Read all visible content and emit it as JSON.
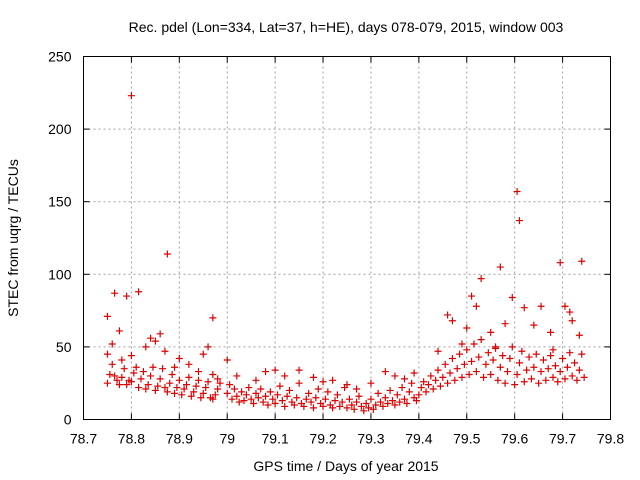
{
  "chart_data": {
    "type": "scatter",
    "title": "Rec. pdel (Lon=334, Lat=37, h=HE), days 078-079, 2015, window 003",
    "xlabel": "GPS time / Days of year 2015",
    "ylabel": "STEC from uqrg / TECUs",
    "xlim": [
      78.7,
      79.8
    ],
    "ylim": [
      0,
      250
    ],
    "xticks": [
      "78.7",
      "78.8",
      "78.9",
      "79",
      "79.1",
      "79.2",
      "79.3",
      "79.4",
      "79.5",
      "79.6",
      "79.7",
      "79.8"
    ],
    "yticks": [
      "0",
      "50",
      "100",
      "150",
      "200",
      "250"
    ],
    "grid": true,
    "marker": "+",
    "color": "#dd0000",
    "points": [
      [
        78.75,
        25
      ],
      [
        78.755,
        31
      ],
      [
        78.76,
        38
      ],
      [
        78.765,
        30
      ],
      [
        78.77,
        27
      ],
      [
        78.775,
        24
      ],
      [
        78.78,
        29
      ],
      [
        78.785,
        35
      ],
      [
        78.79,
        24
      ],
      [
        78.795,
        27
      ],
      [
        78.8,
        26
      ],
      [
        78.805,
        32
      ],
      [
        78.81,
        36
      ],
      [
        78.815,
        22
      ],
      [
        78.82,
        28
      ],
      [
        78.825,
        33
      ],
      [
        78.83,
        21
      ],
      [
        78.835,
        24
      ],
      [
        78.84,
        30
      ],
      [
        78.845,
        36
      ],
      [
        78.85,
        20
      ],
      [
        78.855,
        23
      ],
      [
        78.86,
        28
      ],
      [
        78.865,
        35
      ],
      [
        78.87,
        22
      ],
      [
        78.875,
        19
      ],
      [
        78.88,
        25
      ],
      [
        78.885,
        31
      ],
      [
        78.89,
        18
      ],
      [
        78.895,
        22
      ],
      [
        78.9,
        27
      ],
      [
        78.905,
        17
      ],
      [
        78.91,
        21
      ],
      [
        78.915,
        24
      ],
      [
        78.92,
        29
      ],
      [
        78.925,
        16
      ],
      [
        78.93,
        19
      ],
      [
        78.935,
        23
      ],
      [
        78.94,
        27
      ],
      [
        78.945,
        15
      ],
      [
        78.95,
        18
      ],
      [
        78.955,
        22
      ],
      [
        78.96,
        26
      ],
      [
        78.965,
        15
      ],
      [
        78.97,
        14
      ],
      [
        78.975,
        17
      ],
      [
        78.98,
        21
      ],
      [
        78.985,
        25
      ],
      [
        78.75,
        45
      ],
      [
        78.76,
        52
      ],
      [
        78.78,
        41
      ],
      [
        78.8,
        44
      ],
      [
        78.83,
        50
      ],
      [
        78.85,
        54
      ],
      [
        78.87,
        47
      ],
      [
        78.9,
        42
      ],
      [
        78.92,
        38
      ],
      [
        78.95,
        45
      ],
      [
        78.97,
        31
      ],
      [
        78.98,
        28
      ],
      [
        78.75,
        71
      ],
      [
        78.765,
        87
      ],
      [
        78.775,
        61
      ],
      [
        78.79,
        85
      ],
      [
        78.8,
        223
      ],
      [
        78.815,
        88
      ],
      [
        78.84,
        56
      ],
      [
        78.86,
        59
      ],
      [
        78.875,
        114
      ],
      [
        78.96,
        50
      ],
      [
        78.97,
        70
      ],
      [
        78.89,
        36
      ],
      [
        78.94,
        33
      ],
      [
        79.0,
        18
      ],
      [
        79.005,
        24
      ],
      [
        79.01,
        14
      ],
      [
        79.015,
        21
      ],
      [
        79.02,
        16
      ],
      [
        79.025,
        12
      ],
      [
        79.03,
        19
      ],
      [
        79.035,
        13
      ],
      [
        79.04,
        17
      ],
      [
        79.045,
        22
      ],
      [
        79.05,
        14
      ],
      [
        79.055,
        11
      ],
      [
        79.06,
        18
      ],
      [
        79.065,
        15
      ],
      [
        79.07,
        21
      ],
      [
        79.075,
        12
      ],
      [
        79.08,
        16
      ],
      [
        79.085,
        10
      ],
      [
        79.09,
        19
      ],
      [
        79.095,
        14
      ],
      [
        79.1,
        11
      ],
      [
        79.105,
        17
      ],
      [
        79.11,
        23
      ],
      [
        79.115,
        13
      ],
      [
        79.12,
        9
      ],
      [
        79.125,
        16
      ],
      [
        79.13,
        20
      ],
      [
        79.135,
        12
      ],
      [
        79.14,
        10
      ],
      [
        79.145,
        15
      ],
      [
        79.15,
        25
      ],
      [
        79.155,
        11
      ],
      [
        79.16,
        9
      ],
      [
        79.165,
        14
      ],
      [
        79.17,
        18
      ],
      [
        79.175,
        12
      ],
      [
        79.18,
        8
      ],
      [
        79.185,
        15
      ],
      [
        79.19,
        21
      ],
      [
        79.195,
        11
      ],
      [
        79.2,
        9
      ],
      [
        79.205,
        14
      ],
      [
        79.21,
        19
      ],
      [
        79.215,
        10
      ],
      [
        79.22,
        8
      ],
      [
        79.225,
        13
      ],
      [
        79.23,
        17
      ],
      [
        79.235,
        9
      ],
      [
        79.24,
        12
      ],
      [
        79.245,
        22
      ],
      [
        79.25,
        8
      ],
      [
        79.255,
        14
      ],
      [
        79.26,
        10
      ],
      [
        79.265,
        7
      ],
      [
        79.27,
        12
      ],
      [
        79.275,
        16
      ],
      [
        79.28,
        9
      ],
      [
        79.285,
        6
      ],
      [
        79.29,
        11
      ],
      [
        79.295,
        8
      ],
      [
        79.3,
        14
      ],
      [
        79.305,
        7
      ],
      [
        79.31,
        10
      ],
      [
        79.315,
        18
      ],
      [
        79.32,
        12
      ],
      [
        79.325,
        9
      ],
      [
        79.33,
        15
      ],
      [
        79.335,
        11
      ],
      [
        79.34,
        20
      ],
      [
        79.345,
        13
      ],
      [
        79.35,
        10
      ],
      [
        79.355,
        17
      ],
      [
        79.36,
        12
      ],
      [
        79.365,
        22
      ],
      [
        79.37,
        14
      ],
      [
        79.375,
        11
      ],
      [
        79.38,
        19
      ],
      [
        79.385,
        25
      ],
      [
        79.39,
        15
      ],
      [
        79.395,
        13
      ],
      [
        79.0,
        41
      ],
      [
        79.02,
        30
      ],
      [
        79.06,
        27
      ],
      [
        79.08,
        33
      ],
      [
        79.1,
        34
      ],
      [
        79.12,
        30
      ],
      [
        79.15,
        34
      ],
      [
        79.18,
        29
      ],
      [
        79.2,
        26
      ],
      [
        79.22,
        27
      ],
      [
        79.25,
        24
      ],
      [
        79.27,
        21
      ],
      [
        79.3,
        25
      ],
      [
        79.33,
        33
      ],
      [
        79.35,
        30
      ],
      [
        79.37,
        28
      ],
      [
        79.39,
        32
      ],
      [
        79.4,
        17
      ],
      [
        79.405,
        22
      ],
      [
        79.41,
        26
      ],
      [
        79.415,
        19
      ],
      [
        79.42,
        24
      ],
      [
        79.425,
        30
      ],
      [
        79.43,
        21
      ],
      [
        79.435,
        27
      ],
      [
        79.44,
        34
      ],
      [
        79.445,
        23
      ],
      [
        79.45,
        29
      ],
      [
        79.455,
        38
      ],
      [
        79.46,
        25
      ],
      [
        79.465,
        32
      ],
      [
        79.47,
        42
      ],
      [
        79.475,
        27
      ],
      [
        79.48,
        35
      ],
      [
        79.485,
        45
      ],
      [
        79.49,
        29
      ],
      [
        79.495,
        38
      ],
      [
        79.5,
        48
      ],
      [
        79.505,
        31
      ],
      [
        79.51,
        40
      ],
      [
        79.515,
        52
      ],
      [
        79.52,
        33
      ],
      [
        79.525,
        43
      ],
      [
        79.53,
        55
      ],
      [
        79.535,
        29
      ],
      [
        79.54,
        38
      ],
      [
        79.545,
        46
      ],
      [
        79.55,
        31
      ],
      [
        79.555,
        41
      ],
      [
        79.56,
        49
      ],
      [
        79.565,
        27
      ],
      [
        79.57,
        36
      ],
      [
        79.575,
        44
      ],
      [
        79.58,
        25
      ],
      [
        79.585,
        33
      ],
      [
        79.59,
        42
      ],
      [
        79.595,
        50
      ],
      [
        79.6,
        24
      ],
      [
        79.605,
        31
      ],
      [
        79.61,
        39
      ],
      [
        79.615,
        47
      ],
      [
        79.62,
        26
      ],
      [
        79.625,
        34
      ],
      [
        79.63,
        43
      ],
      [
        79.635,
        28
      ],
      [
        79.64,
        36
      ],
      [
        79.645,
        45
      ],
      [
        79.65,
        25
      ],
      [
        79.655,
        33
      ],
      [
        79.66,
        41
      ],
      [
        79.665,
        27
      ],
      [
        79.67,
        35
      ],
      [
        79.675,
        44
      ],
      [
        79.68,
        29
      ],
      [
        79.685,
        37
      ],
      [
        79.69,
        26
      ],
      [
        79.695,
        33
      ],
      [
        79.7,
        42
      ],
      [
        79.705,
        28
      ],
      [
        79.71,
        36
      ],
      [
        79.715,
        46
      ],
      [
        79.72,
        30
      ],
      [
        79.725,
        39
      ],
      [
        79.73,
        27
      ],
      [
        79.735,
        34
      ],
      [
        79.74,
        45
      ],
      [
        79.745,
        29
      ],
      [
        79.46,
        72
      ],
      [
        79.47,
        68
      ],
      [
        79.5,
        63
      ],
      [
        79.51,
        85
      ],
      [
        79.52,
        78
      ],
      [
        79.53,
        97
      ],
      [
        79.55,
        60
      ],
      [
        79.57,
        105
      ],
      [
        79.58,
        66
      ],
      [
        79.595,
        84
      ],
      [
        79.605,
        157
      ],
      [
        79.61,
        137
      ],
      [
        79.62,
        77
      ],
      [
        79.64,
        65
      ],
      [
        79.655,
        78
      ],
      [
        79.675,
        60
      ],
      [
        79.695,
        108
      ],
      [
        79.705,
        78
      ],
      [
        79.715,
        74
      ],
      [
        79.72,
        68
      ],
      [
        79.735,
        58
      ],
      [
        79.74,
        109
      ],
      [
        79.56,
        50
      ],
      [
        79.49,
        52
      ],
      [
        79.44,
        47
      ],
      [
        79.68,
        48
      ]
    ]
  }
}
